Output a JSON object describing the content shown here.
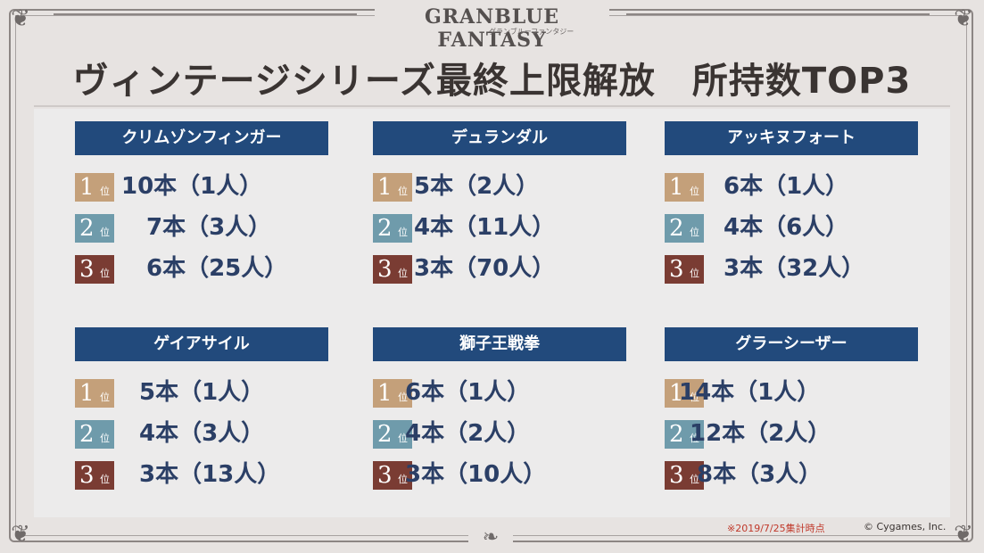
{
  "logo": {
    "main": "GRANBLUE FANTASY",
    "sub": "グランブルーファンタジー"
  },
  "title": "ヴィンテージシリーズ最終上限解放　所持数TOP3",
  "rank_suffix": "位",
  "rank_colors": [
    "#c4a07a",
    "#6f9bab",
    "#7a3c33"
  ],
  "weapons": [
    {
      "name": "クリムゾンフィンガー",
      "ranks": [
        {
          "rank": "1",
          "text": "10本（1人）"
        },
        {
          "rank": "2",
          "text": "7本（3人）"
        },
        {
          "rank": "3",
          "text": "6本（25人）"
        }
      ]
    },
    {
      "name": "デュランダル",
      "ranks": [
        {
          "rank": "1",
          "text": "5本（2人）"
        },
        {
          "rank": "2",
          "text": "4本（11人）"
        },
        {
          "rank": "3",
          "text": "3本（70人）"
        }
      ]
    },
    {
      "name": "アッキヌフォート",
      "ranks": [
        {
          "rank": "1",
          "text": "6本（1人）"
        },
        {
          "rank": "2",
          "text": "4本（6人）"
        },
        {
          "rank": "3",
          "text": "3本（32人）"
        }
      ]
    },
    {
      "name": "ゲイアサイル",
      "ranks": [
        {
          "rank": "1",
          "text": "5本（1人）"
        },
        {
          "rank": "2",
          "text": "4本（3人）"
        },
        {
          "rank": "3",
          "text": "3本（13人）"
        }
      ]
    },
    {
      "name": "獅子王戦拳",
      "ranks": [
        {
          "rank": "1",
          "text": "6本（1人）"
        },
        {
          "rank": "2",
          "text": "4本（2人）"
        },
        {
          "rank": "3",
          "text": "3本（10人）"
        }
      ]
    },
    {
      "name": "グラーシーザー",
      "ranks": [
        {
          "rank": "1",
          "text": "14本（1人）"
        },
        {
          "rank": "2",
          "text": "12本（2人）"
        },
        {
          "rank": "3",
          "text": "8本（3人）"
        }
      ]
    }
  ],
  "footer": {
    "note": "※2019/7/25集計時点",
    "copyright": "© Cygames, Inc."
  }
}
